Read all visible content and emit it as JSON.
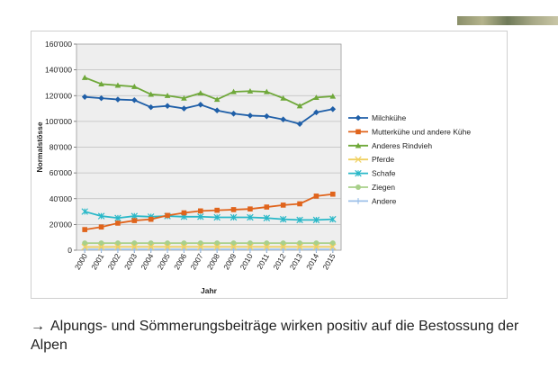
{
  "slide": {
    "caption_arrow": "→",
    "caption": "Alpungs- und Sömmerungsbeiträge wirken positiv auf die Bestossung der Alpen"
  },
  "chart_data": {
    "type": "line",
    "title": "",
    "xlabel": "Jahr",
    "ylabel": "Normalstösse",
    "ylim": [
      0,
      160000
    ],
    "yticks": [
      0,
      20000,
      40000,
      60000,
      80000,
      100000,
      120000,
      140000,
      160000
    ],
    "ytick_labels": [
      "0",
      "20'000",
      "40'000",
      "60'000",
      "80'000",
      "100'000",
      "120'000",
      "140'000",
      "160'000"
    ],
    "categories": [
      "2000",
      "2001",
      "2002",
      "2003",
      "2004",
      "2005",
      "2006",
      "2007",
      "2008",
      "2009",
      "2010",
      "2011",
      "2012",
      "2013",
      "2014",
      "2015"
    ],
    "grid": true,
    "legend": "right",
    "series": [
      {
        "name": "Milchkühe",
        "color": "#1f5fa8",
        "marker": "diamond",
        "values": [
          119000,
          118000,
          117000,
          116500,
          111000,
          112000,
          110000,
          113000,
          108500,
          106000,
          104500,
          104000,
          101500,
          98000,
          107000,
          109500
        ]
      },
      {
        "name": "Mutterkühe und andere Kühe",
        "color": "#e0641c",
        "marker": "square",
        "values": [
          16000,
          18000,
          21000,
          23000,
          24000,
          27000,
          29000,
          30500,
          31000,
          31500,
          32000,
          33500,
          35000,
          36000,
          42000,
          43500
        ]
      },
      {
        "name": "Anderes Rindvieh",
        "color": "#6fa83a",
        "marker": "triangle",
        "values": [
          134000,
          129000,
          128000,
          127000,
          121000,
          120000,
          118000,
          122000,
          117000,
          123000,
          123500,
          123000,
          118000,
          112000,
          118500,
          119500
        ]
      },
      {
        "name": "Pferde",
        "color": "#f0d060",
        "marker": "x",
        "values": [
          2500,
          2500,
          2600,
          2600,
          2600,
          2600,
          2600,
          2600,
          2600,
          2600,
          2600,
          2600,
          2600,
          2600,
          2600,
          2600
        ]
      },
      {
        "name": "Schafe",
        "color": "#2ab8c8",
        "marker": "asterisk",
        "values": [
          30000,
          26500,
          25000,
          26500,
          26000,
          26500,
          26000,
          26000,
          25500,
          25500,
          25500,
          25000,
          24000,
          23500,
          23500,
          24000
        ]
      },
      {
        "name": "Ziegen",
        "color": "#a8d08a",
        "marker": "circle",
        "values": [
          5500,
          5500,
          5500,
          5500,
          5500,
          5500,
          5500,
          5500,
          5500,
          5500,
          5500,
          5500,
          5500,
          5500,
          5500,
          5500
        ]
      },
      {
        "name": "Andere",
        "color": "#9cc0e8",
        "marker": "plus",
        "values": [
          600,
          600,
          600,
          600,
          600,
          600,
          600,
          600,
          600,
          600,
          600,
          600,
          600,
          600,
          600,
          600
        ]
      }
    ]
  }
}
